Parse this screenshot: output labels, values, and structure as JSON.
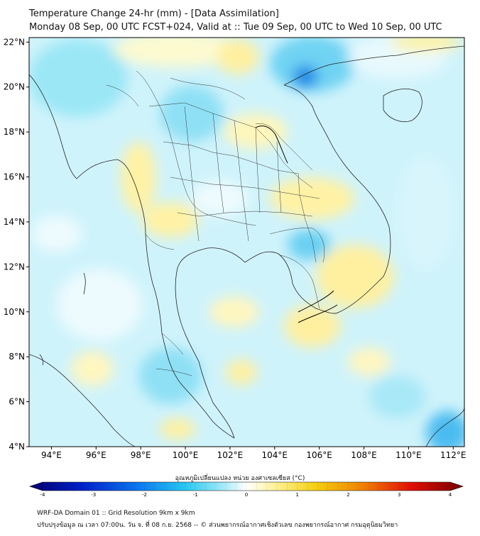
{
  "header": {
    "title_line1": "Temperature Change 24-hr (mm) - [Data Assimilation]",
    "title_line2": "Monday 08 Sep, 00 UTC FCST+024, Valid at :: Tue 09 Sep, 00 UTC to Wed 10 Sep, 00 UTC"
  },
  "map": {
    "lat_labels": [
      "22°N",
      "20°N",
      "18°N",
      "16°N",
      "14°N",
      "12°N",
      "10°N",
      "8°N",
      "6°N",
      "4°N"
    ],
    "lon_labels": [
      "94°E",
      "96°E",
      "98°E",
      "100°E",
      "102°E",
      "104°E",
      "106°E",
      "108°E",
      "110°E",
      "112°E"
    ],
    "lat_values": [
      22,
      20,
      18,
      16,
      14,
      12,
      10,
      8,
      6,
      4
    ],
    "lon_values": [
      94,
      96,
      98,
      100,
      102,
      104,
      106,
      108,
      110,
      112
    ],
    "extent": {
      "lon_min": 93,
      "lon_max": 112.5,
      "lat_min": 4,
      "lat_max": 22.2
    },
    "background_color": "#ffffff",
    "land_color": "#ffffff"
  },
  "colorbar": {
    "title": "อุณหภูมิเปลี่ยนแปลง หน่วย องศาเซลเซียส (°C)",
    "tick_labels": [
      "-4",
      "-3",
      "-2",
      "-1",
      "0",
      "1",
      "2",
      "3",
      "4"
    ],
    "tick_values": [
      -4,
      -3,
      -2,
      -1,
      0,
      1,
      2,
      3,
      4
    ],
    "colors": [
      "#00006e",
      "#0020c8",
      "#0a78f0",
      "#28c8f0",
      "#a8ecf8",
      "#ffffff",
      "#fff3a0",
      "#f4d010",
      "#f08000",
      "#e01000",
      "#780000"
    ]
  },
  "footer": {
    "line1": "WRF-DA Domain 01 :: Grid Resolution 9km x 9km",
    "line2": "ปรับปรุงข้อมูล ณ เวลา 07:00น. วัน จ. ที่ 08 ก.ย. 2568 -- © ส่วนพยากรณ์อากาศเชิงตัวเลข กองพยากรณ์อากาศ กรมอุตุนิยมวิทยา"
  }
}
